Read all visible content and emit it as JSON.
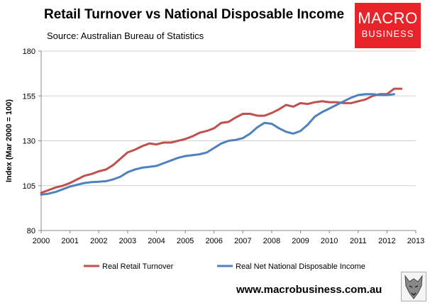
{
  "header": {
    "title": "Retail Turnover vs National Disposable Income",
    "source": "Source: Australian Bureau of Statistics"
  },
  "logo": {
    "line1": "MACRO",
    "line2": "BUSINESS",
    "color": "#e8232a"
  },
  "footer": {
    "url": "www.macrobusiness.com.au",
    "mascot_icon": "wolf-icon"
  },
  "chart_data": {
    "type": "line",
    "title": "Retail Turnover vs National Disposable Income",
    "xlabel": "",
    "ylabel": "Index (Mar 2000 = 100)",
    "xlim": [
      2000,
      2013
    ],
    "ylim": [
      80,
      180
    ],
    "xticks": [
      2000,
      2001,
      2002,
      2003,
      2004,
      2005,
      2006,
      2007,
      2008,
      2009,
      2010,
      2011,
      2012,
      2013
    ],
    "yticks": [
      80,
      105,
      130,
      155,
      180
    ],
    "grid": true,
    "legend_position": "bottom",
    "series": [
      {
        "name": "Real Retail Turnover",
        "color": "#c0504d",
        "x": [
          2000.0,
          2000.25,
          2000.5,
          2000.75,
          2001.0,
          2001.25,
          2001.5,
          2001.75,
          2002.0,
          2002.25,
          2002.5,
          2002.75,
          2003.0,
          2003.25,
          2003.5,
          2003.75,
          2004.0,
          2004.25,
          2004.5,
          2004.75,
          2005.0,
          2005.25,
          2005.5,
          2005.75,
          2006.0,
          2006.25,
          2006.5,
          2006.75,
          2007.0,
          2007.25,
          2007.5,
          2007.75,
          2008.0,
          2008.25,
          2008.5,
          2008.75,
          2009.0,
          2009.25,
          2009.5,
          2009.75,
          2010.0,
          2010.25,
          2010.5,
          2010.75,
          2011.0,
          2011.25,
          2011.5,
          2011.75,
          2012.0,
          2012.25,
          2012.5
        ],
        "values": [
          101,
          102.5,
          104,
          105,
          106.5,
          108.5,
          110.5,
          111.5,
          113,
          114,
          116.5,
          120,
          123.5,
          125,
          127,
          128.5,
          128,
          129,
          129,
          130,
          131,
          132.5,
          134.5,
          135.5,
          137,
          140,
          140.5,
          143,
          145,
          145,
          144,
          144,
          145.5,
          147.5,
          150,
          149,
          151,
          150.5,
          151.5,
          152,
          151.5,
          151.5,
          151,
          151,
          152,
          153,
          155,
          156,
          156,
          159,
          159
        ]
      },
      {
        "name": "Real Net National Disposable Income",
        "color": "#4f81bd",
        "x": [
          2000.0,
          2000.25,
          2000.5,
          2000.75,
          2001.0,
          2001.25,
          2001.5,
          2001.75,
          2002.0,
          2002.25,
          2002.5,
          2002.75,
          2003.0,
          2003.25,
          2003.5,
          2003.75,
          2004.0,
          2004.25,
          2004.5,
          2004.75,
          2005.0,
          2005.25,
          2005.5,
          2005.75,
          2006.0,
          2006.25,
          2006.5,
          2006.75,
          2007.0,
          2007.25,
          2007.5,
          2007.75,
          2008.0,
          2008.25,
          2008.5,
          2008.75,
          2009.0,
          2009.25,
          2009.5,
          2009.75,
          2010.0,
          2010.25,
          2010.5,
          2010.75,
          2011.0,
          2011.25,
          2011.5,
          2011.75,
          2012.0,
          2012.25
        ],
        "values": [
          100,
          100.5,
          101.5,
          103,
          104.5,
          105.5,
          106.5,
          107,
          107.2,
          107.5,
          108.5,
          110,
          112.5,
          114,
          115,
          115.5,
          116,
          117.5,
          119,
          120.5,
          121.5,
          122,
          122.5,
          123.5,
          126,
          128.5,
          130,
          130.5,
          131.5,
          134,
          137.5,
          140,
          139.5,
          137,
          135,
          134,
          135.5,
          139,
          143.5,
          146,
          148,
          150,
          152,
          154,
          155.5,
          156,
          156,
          155.5,
          155.5,
          156
        ]
      }
    ]
  }
}
